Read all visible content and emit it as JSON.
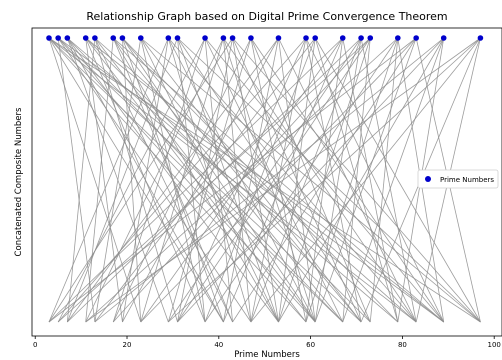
{
  "chart_data": {
    "type": "scatter",
    "title": "Relationship Graph based on Digital Prime Convergence Theorem",
    "xlabel": "Prime Numbers",
    "ylabel": "Concatenated Composite Numbers",
    "xlim": [
      -0.7,
      101.7
    ],
    "xticks": [
      0,
      20,
      40,
      60,
      80,
      100
    ],
    "xtick_labels": [
      "0",
      "20",
      "40",
      "60",
      "80",
      "100"
    ],
    "y_ticks_shown": false,
    "grid": false,
    "legend": {
      "position": "right",
      "entries": [
        "Prime Numbers"
      ]
    },
    "series": [
      {
        "name": "Prime Numbers",
        "color": "#0000cc",
        "x": [
          3,
          5,
          7,
          11,
          13,
          17,
          19,
          23,
          29,
          31,
          37,
          41,
          43,
          47,
          53,
          59,
          61,
          67,
          71,
          73,
          79,
          83,
          89,
          97
        ],
        "y": "top"
      }
    ],
    "edges": {
      "color": "#8c8c8c",
      "from_top": [
        3,
        3,
        3,
        3,
        3,
        3,
        5,
        5,
        5,
        5,
        5,
        7,
        7,
        7,
        7,
        7,
        11,
        11,
        11,
        11,
        11,
        13,
        13,
        13,
        13,
        13,
        17,
        17,
        17,
        17,
        17,
        19,
        19,
        19,
        19,
        19,
        23,
        23,
        23,
        23,
        23,
        29,
        29,
        29,
        29,
        29,
        31,
        31,
        31,
        31,
        31,
        37,
        37,
        37,
        37,
        37,
        41,
        41,
        41,
        41,
        41,
        43,
        43,
        43,
        43,
        43,
        47,
        47,
        47,
        47,
        47,
        53,
        53,
        53,
        53,
        53,
        59,
        59,
        59,
        59,
        59,
        61,
        61,
        61,
        61,
        61,
        67,
        67,
        67,
        67,
        67,
        71,
        71,
        71,
        71,
        71,
        73,
        73,
        73,
        73,
        73,
        79,
        79,
        79,
        79,
        79,
        83,
        83,
        83,
        83,
        83,
        89,
        89,
        89,
        89,
        89,
        97,
        97,
        97,
        97,
        97
      ],
      "to_bottom": [
        41,
        59,
        67,
        83,
        97,
        23,
        47,
        61,
        71,
        89,
        13,
        53,
        67,
        79,
        29,
        41,
        37,
        59,
        73,
        89,
        19,
        43,
        61,
        83,
        7,
        31,
        43,
        67,
        89,
        11,
        53,
        71,
        23,
        41,
        61,
        79,
        13,
        37,
        53,
        71,
        97,
        3,
        47,
        61,
        83,
        19,
        7,
        37,
        53,
        73,
        97,
        17,
        43,
        67,
        89,
        5,
        23,
        47,
        61,
        83,
        11,
        31,
        53,
        71,
        97,
        3,
        17,
        59,
        73,
        89,
        29,
        7,
        41,
        61,
        83,
        19,
        5,
        31,
        47,
        71,
        89,
        13,
        37,
        53,
        79,
        97,
        3,
        23,
        41,
        59,
        79,
        7,
        29,
        47,
        61,
        83,
        17,
        5,
        31,
        53,
        67,
        89,
        11,
        37,
        59,
        73,
        97,
        3,
        23,
        43,
        61,
        79,
        13,
        31,
        53,
        67,
        83,
        11,
        29,
        47,
        71
      ]
    }
  }
}
